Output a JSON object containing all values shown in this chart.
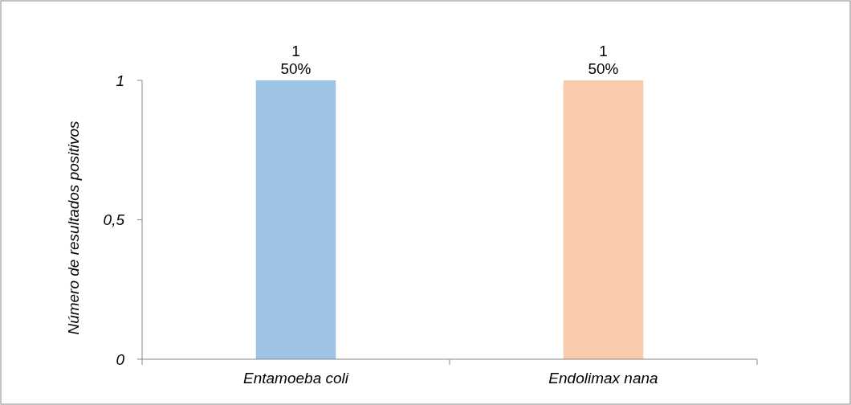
{
  "chart_data": {
    "type": "bar",
    "ylabel": "Número de resultados positivos",
    "categories": [
      "Entamoeba coli",
      "Endolimax nana"
    ],
    "values": [
      1,
      1
    ],
    "colors": [
      "#9dc3e6",
      "#f8cbad"
    ],
    "value_labels": [
      "1\n50%",
      "1\n50%"
    ],
    "ylim": [
      0,
      1
    ],
    "yticks": [
      0,
      {
        "value": 0.5,
        "label": "0,5"
      },
      1
    ],
    "grid": false
  }
}
